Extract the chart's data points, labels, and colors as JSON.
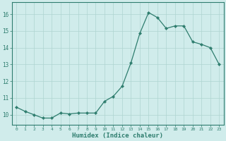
{
  "x": [
    0,
    1,
    2,
    3,
    4,
    5,
    6,
    7,
    8,
    9,
    10,
    11,
    12,
    13,
    14,
    15,
    16,
    17,
    18,
    19,
    20,
    21,
    22,
    23
  ],
  "y": [
    10.45,
    10.2,
    10.0,
    9.8,
    9.8,
    10.1,
    10.05,
    10.1,
    10.1,
    10.1,
    10.8,
    11.1,
    11.7,
    13.1,
    14.85,
    16.1,
    15.8,
    15.15,
    15.3,
    15.3,
    14.35,
    14.2,
    14.0,
    13.0
  ],
  "line_color": "#2e7d6e",
  "marker": "D",
  "markersize": 2.2,
  "bg_color": "#d0eceb",
  "grid_color": "#aed4d0",
  "axis_color": "#2e7d6e",
  "tick_color": "#2e7d6e",
  "xlabel": "Humidex (Indice chaleur)",
  "xlabel_fontsize": 6.5,
  "ylabel_ticks": [
    10,
    11,
    12,
    13,
    14,
    15,
    16
  ],
  "xlim": [
    -0.5,
    23.5
  ],
  "ylim": [
    9.4,
    16.7
  ]
}
